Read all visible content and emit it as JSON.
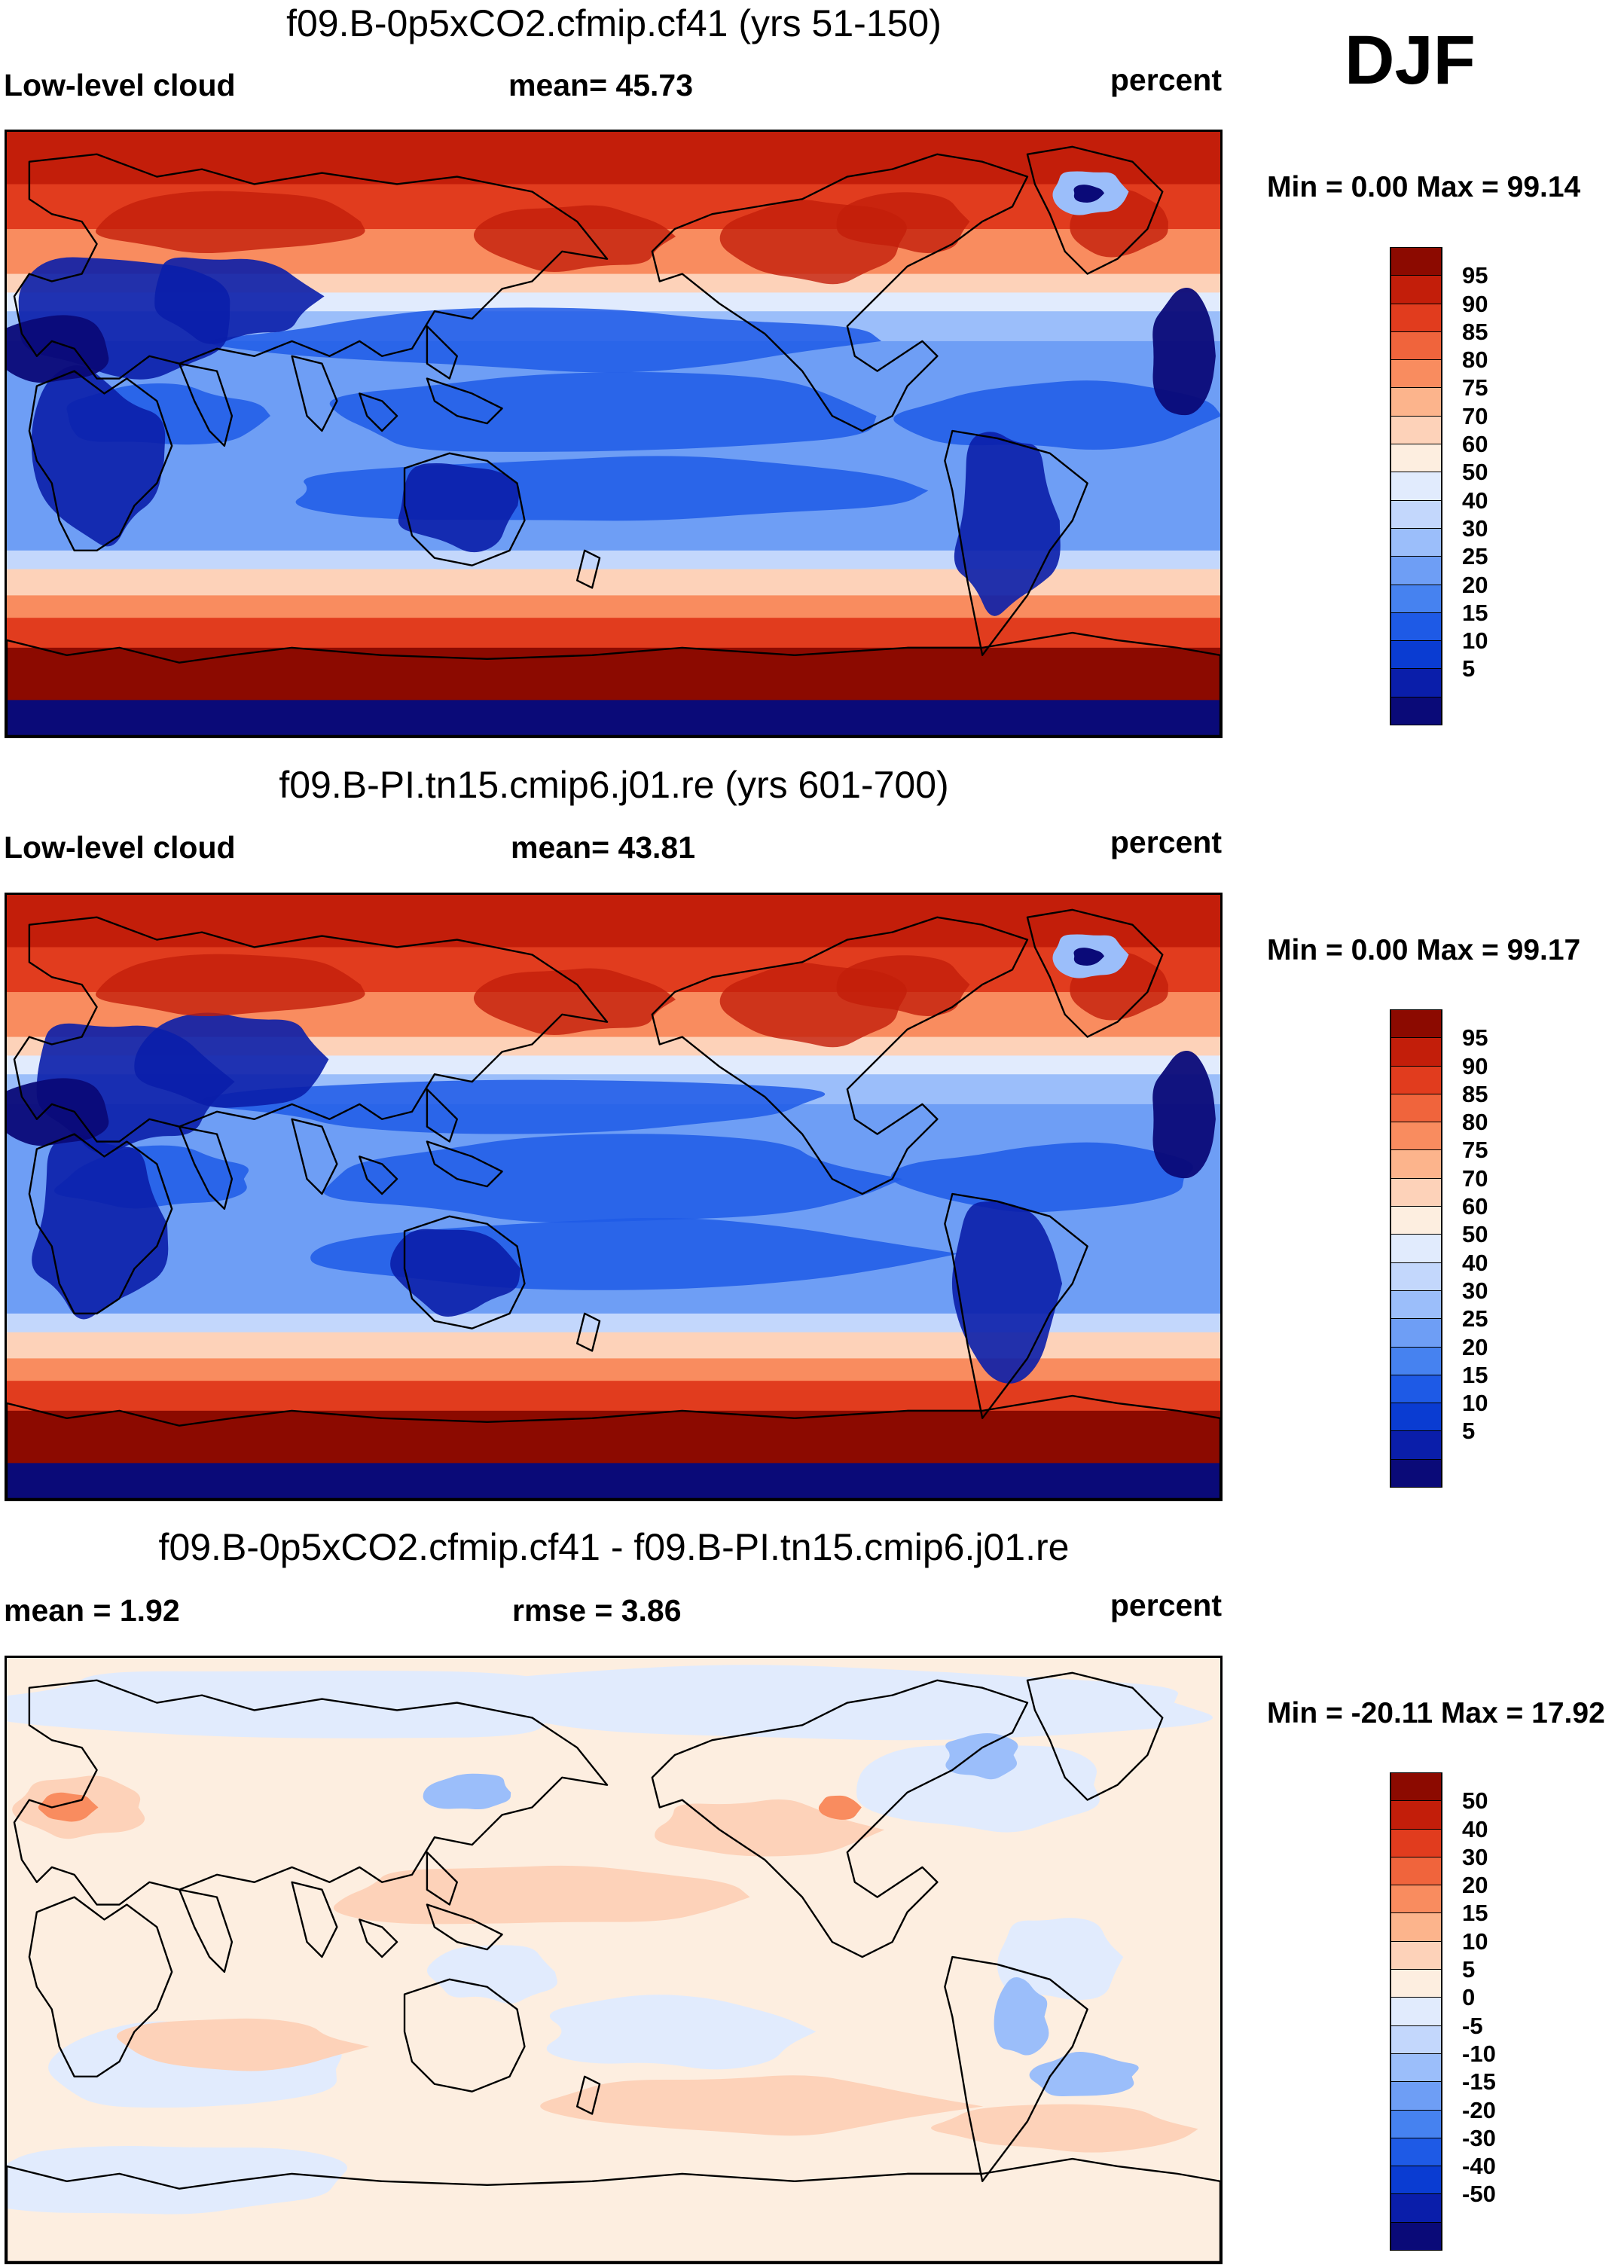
{
  "season": "DJF",
  "colors": {
    "abs_scale": [
      "#0a0a78",
      "#0a1eaa",
      "#0a3cd2",
      "#1e5ae6",
      "#4682f0",
      "#6e9ef5",
      "#9bbefa",
      "#c3d7fc",
      "#e1ebfd",
      "#fdeee0",
      "#fdd2b9",
      "#fcb48c",
      "#f98c5f",
      "#f0643c",
      "#e13c1e",
      "#c31e0a",
      "#8c0a00"
    ],
    "diff_scale": [
      "#0a0a78",
      "#0a1eaa",
      "#0a3cd2",
      "#1e5ae6",
      "#4682f0",
      "#6e9ef5",
      "#9bbefa",
      "#c3d7fc",
      "#e1ebfd",
      "#fdeee0",
      "#fdd2b9",
      "#fcb48c",
      "#f98c5f",
      "#f0643c",
      "#e13c1e",
      "#c31e0a",
      "#8c0a00"
    ]
  },
  "panels": [
    {
      "title": "f09.B-0p5xCO2.cfmip.cf41 (yrs 51-150)",
      "left_label": "Low-level cloud",
      "center_label": "mean=  45.73",
      "right_label": "percent",
      "minmax": "Min =   0.00 Max =  99.14",
      "map": "cloud",
      "colorbar_ticks": [
        "95",
        "90",
        "85",
        "80",
        "75",
        "70",
        "60",
        "50",
        "40",
        "30",
        "25",
        "20",
        "15",
        "10",
        "5"
      ]
    },
    {
      "title": "f09.B-PI.tn15.cmip6.j01.re (yrs 601-700)",
      "left_label": "Low-level cloud",
      "center_label": "mean=  43.81",
      "right_label": "percent",
      "minmax": "Min =   0.00 Max =  99.17",
      "map": "cloud",
      "colorbar_ticks": [
        "95",
        "90",
        "85",
        "80",
        "75",
        "70",
        "60",
        "50",
        "40",
        "30",
        "25",
        "20",
        "15",
        "10",
        "5"
      ]
    },
    {
      "title": "f09.B-0p5xCO2.cfmip.cf41 - f09.B-PI.tn15.cmip6.j01.re",
      "left_label": "mean =    1.92",
      "center_label": "rmse =    3.86",
      "right_label": "percent",
      "minmax": "Min = -20.11 Max =  17.92",
      "map": "diff",
      "colorbar_ticks": [
        "50",
        "40",
        "30",
        "20",
        "15",
        "10",
        "5",
        "0",
        "-5",
        "-10",
        "-15",
        "-20",
        "-30",
        "-40",
        "-50"
      ]
    }
  ]
}
